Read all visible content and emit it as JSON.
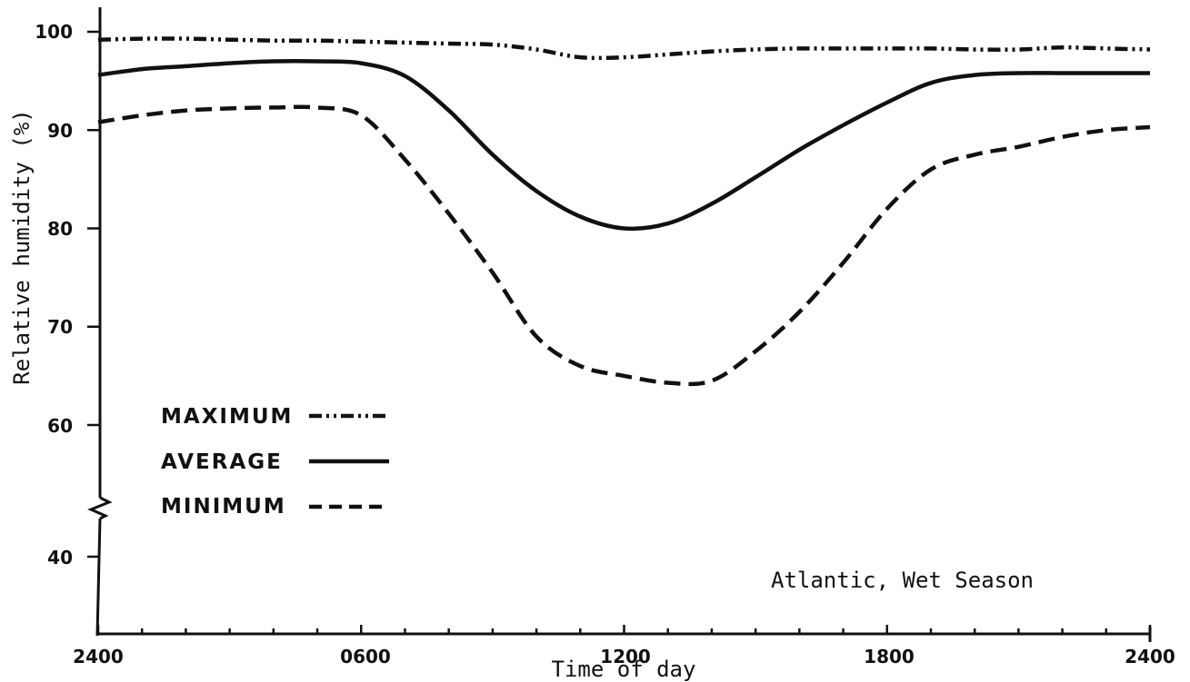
{
  "chart_data": {
    "type": "line",
    "xlabel": "Time of day",
    "ylabel": "Relative humidity (%)",
    "annotation": "Atlantic, Wet Season",
    "x_tick_labels": [
      "2400",
      "0600",
      "1200",
      "1800",
      "2400"
    ],
    "y_tick_labels": [
      "40",
      "60",
      "70",
      "80",
      "90",
      "100"
    ],
    "x_range_hours": [
      0,
      24
    ],
    "ylim": [
      40,
      100
    ],
    "y_axis_break": "between 40 and 60",
    "legend_position": "lower-left",
    "series": [
      {
        "name": "MAXIMUM",
        "style": "dash-dot-dot",
        "x": [
          0,
          1,
          2,
          3,
          4,
          5,
          6,
          7,
          8,
          9,
          10,
          11,
          12,
          13,
          14,
          15,
          16,
          17,
          18,
          19,
          20,
          21,
          22,
          23,
          24
        ],
        "y": [
          99.2,
          99.3,
          99.3,
          99.2,
          99.1,
          99.1,
          99.0,
          98.9,
          98.8,
          98.7,
          98.2,
          97.4,
          97.4,
          97.7,
          98.0,
          98.2,
          98.3,
          98.3,
          98.3,
          98.3,
          98.2,
          98.2,
          98.4,
          98.3,
          98.2
        ]
      },
      {
        "name": "AVERAGE",
        "style": "solid",
        "x": [
          0,
          1,
          2,
          3,
          4,
          5,
          6,
          7,
          8,
          9,
          10,
          11,
          12,
          13,
          14,
          15,
          16,
          17,
          18,
          19,
          20,
          21,
          22,
          23,
          24
        ],
        "y": [
          95.6,
          96.2,
          96.5,
          96.8,
          97.0,
          97.0,
          96.8,
          95.5,
          92.0,
          87.5,
          83.8,
          81.2,
          80.0,
          80.5,
          82.5,
          85.2,
          88.0,
          90.5,
          92.8,
          94.8,
          95.6,
          95.8,
          95.8,
          95.8,
          95.8
        ]
      },
      {
        "name": "MINIMUM",
        "style": "dashed",
        "x": [
          0,
          1,
          2,
          3,
          4,
          5,
          6,
          7,
          8,
          9,
          10,
          11,
          12,
          13,
          14,
          15,
          16,
          17,
          18,
          19,
          20,
          21,
          22,
          23,
          24
        ],
        "y": [
          90.8,
          91.5,
          92.0,
          92.2,
          92.3,
          92.3,
          91.5,
          87.0,
          81.5,
          75.5,
          69.0,
          66.0,
          65.0,
          64.3,
          64.5,
          67.5,
          71.5,
          76.5,
          82.0,
          86.0,
          87.5,
          88.3,
          89.3,
          90.0,
          90.3
        ]
      }
    ]
  }
}
